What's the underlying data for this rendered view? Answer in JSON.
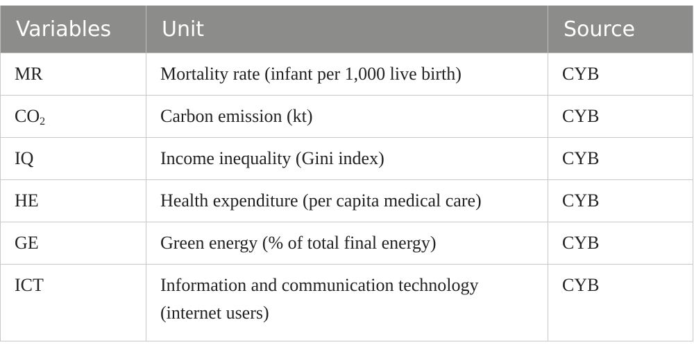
{
  "table": {
    "headers": {
      "variables": "Variables",
      "unit": "Unit",
      "source": "Source"
    },
    "rows": [
      {
        "variable": "MR",
        "unit": "Mortality rate (infant per 1,000 live birth)",
        "source": "CYB"
      },
      {
        "variable": "CO",
        "variable_sub": "2",
        "unit": "Carbon emission (kt)",
        "source": "CYB"
      },
      {
        "variable": "IQ",
        "unit": "Income inequality (Gini index)",
        "source": "CYB"
      },
      {
        "variable": "HE",
        "unit": "Health expenditure (per capita medical care)",
        "source": "CYB"
      },
      {
        "variable": "GE",
        "unit": "Green energy (% of total final energy)",
        "source": "CYB"
      },
      {
        "variable": "ICT",
        "unit": "Information and communication technology (internet users)",
        "source": "CYB"
      }
    ],
    "colors": {
      "header_background": "#8c8c8b",
      "header_text": "#ffffff",
      "border": "#c8c8c8"
    }
  }
}
